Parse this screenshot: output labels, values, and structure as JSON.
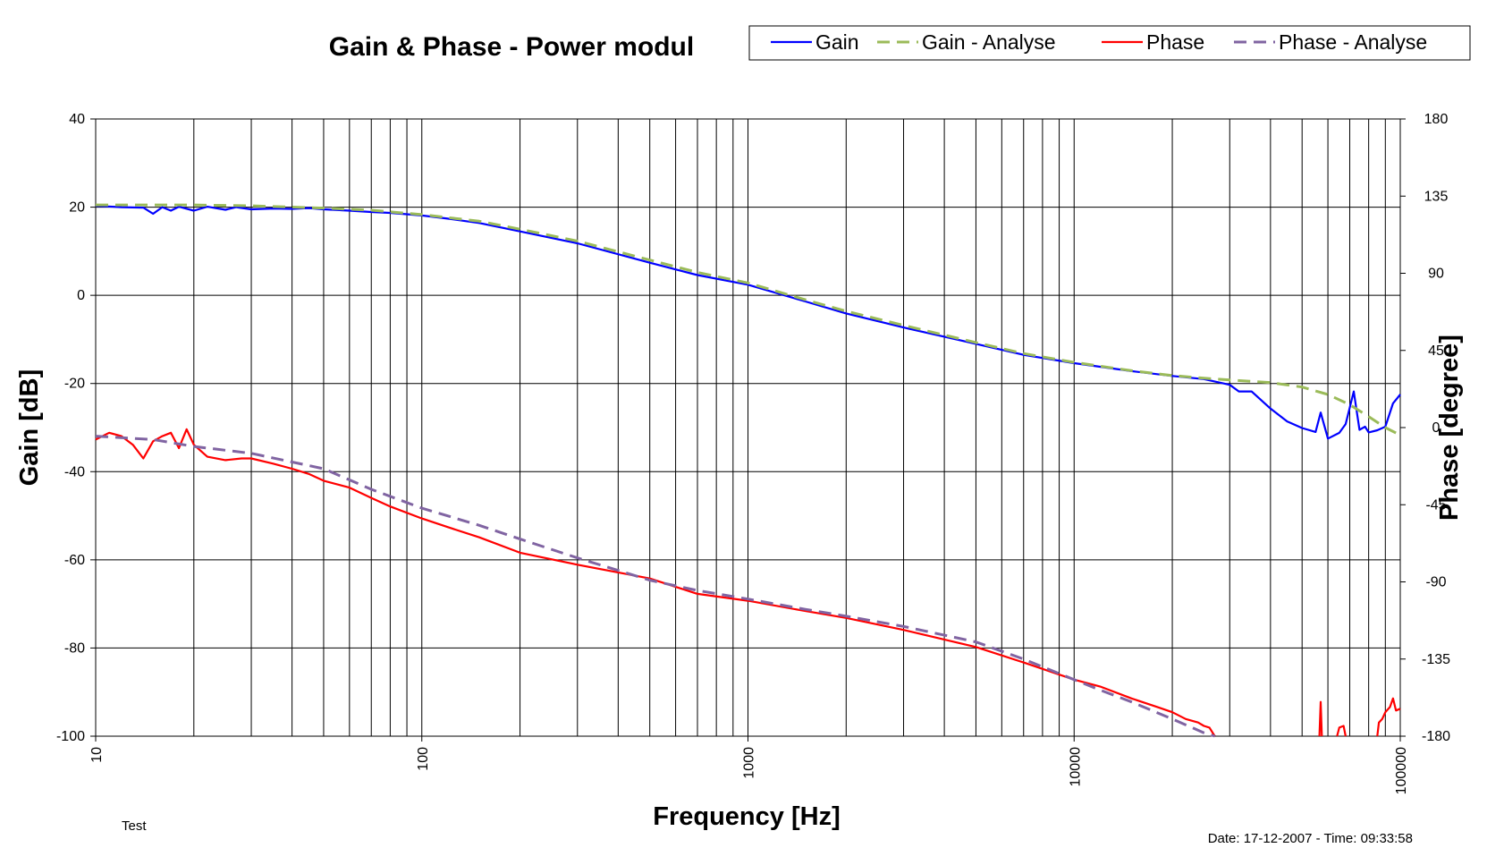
{
  "chart_data": {
    "type": "line",
    "title": "Gain & Phase - Power modul",
    "xlabel": "Frequency [Hz]",
    "ylabel": "Gain [dB]",
    "y2label": "Phase [degree]",
    "xscale": "log",
    "xlim": [
      10,
      100000
    ],
    "ylim": [
      -100,
      40
    ],
    "y2lim": [
      -180,
      180
    ],
    "grid": true,
    "legend_position": "top-right",
    "x_ticks": [
      "10",
      "100",
      "1000",
      "10000",
      "100000"
    ],
    "y_ticks": [
      "40",
      "20",
      "0",
      "-20",
      "-40",
      "-60",
      "-80",
      "-100"
    ],
    "y2_ticks": [
      "180",
      "135",
      "90",
      "45",
      "0",
      "-45",
      "-90",
      "-135",
      "-180"
    ],
    "series": [
      {
        "name": "Gain",
        "axis": "left",
        "color": "#0000ff",
        "style": "solid",
        "x": [
          10,
          12,
          14,
          15,
          16,
          17,
          18,
          20,
          22,
          25,
          27,
          30,
          35,
          40,
          45,
          50,
          60,
          70,
          80,
          100,
          120,
          150,
          200,
          300,
          500,
          700,
          1000,
          1500,
          2000,
          3000,
          5000,
          7000,
          10000,
          15000,
          20000,
          25000,
          30000,
          32000,
          35000,
          40000,
          45000,
          50000,
          55000,
          57000,
          60000,
          65000,
          68000,
          72000,
          75000,
          78000,
          80000,
          85000,
          90000,
          95000,
          100000
        ],
        "y": [
          20.3,
          20.0,
          19.9,
          18.5,
          20.0,
          19.2,
          20.1,
          19.2,
          20.1,
          19.4,
          20.0,
          19.5,
          19.7,
          19.6,
          19.8,
          19.5,
          19.2,
          18.9,
          18.7,
          18.1,
          17.4,
          16.4,
          14.5,
          11.8,
          7.4,
          4.6,
          2.4,
          -1.4,
          -4.1,
          -7.3,
          -11.0,
          -13.5,
          -15.4,
          -17.2,
          -18.3,
          -19.0,
          -20.3,
          -21.8,
          -21.8,
          -25.7,
          -28.6,
          -30.1,
          -31.0,
          -26.6,
          -32.5,
          -31.2,
          -29.2,
          -21.8,
          -30.5,
          -29.8,
          -31.1,
          -30.6,
          -29.8,
          -24.5,
          -22.5
        ]
      },
      {
        "name": "Gain - Analyse",
        "axis": "left",
        "color": "#9bbb59",
        "style": "dashed",
        "x": [
          10,
          20,
          30,
          50,
          70,
          100,
          150,
          200,
          300,
          500,
          700,
          1000,
          1500,
          2000,
          3000,
          5000,
          7000,
          10000,
          15000,
          20000,
          25000,
          30000,
          40000,
          50000,
          60000,
          70000,
          80000,
          90000,
          100000
        ],
        "y": [
          20.5,
          20.5,
          20.3,
          19.8,
          19.3,
          18.3,
          16.8,
          15.0,
          12.3,
          8.0,
          5.2,
          2.8,
          -1.0,
          -3.6,
          -6.8,
          -10.7,
          -13.2,
          -15.2,
          -17.1,
          -18.2,
          -18.8,
          -19.2,
          -19.8,
          -20.8,
          -22.5,
          -24.8,
          -27.5,
          -30.0,
          -31.7
        ]
      },
      {
        "name": "Phase",
        "axis": "right",
        "color": "#ff0000",
        "style": "solid",
        "x": [
          10,
          11,
          12,
          13,
          14,
          15,
          16,
          17,
          18,
          19,
          20,
          22,
          25,
          28,
          30,
          35,
          40,
          45,
          50,
          60,
          70,
          80,
          100,
          120,
          150,
          200,
          300,
          500,
          700,
          1000,
          1500,
          2000,
          3000,
          5000,
          7000,
          10000,
          12000,
          15000,
          18000,
          20000,
          22000,
          24000,
          25000,
          26000,
          27000
        ],
        "y": [
          -7,
          -3,
          -5,
          -10,
          -18,
          -8,
          -5,
          -3,
          -12,
          -1,
          -10,
          -17,
          -19,
          -18,
          -18,
          -21,
          -24,
          -27,
          -31,
          -35,
          -41,
          -46,
          -53,
          -58,
          -64,
          -73,
          -80,
          -88,
          -97,
          -101,
          -107,
          -111,
          -118,
          -128,
          -137,
          -147,
          -151,
          -158,
          -163,
          -166,
          -170,
          -172,
          -174,
          -175,
          -180
        ]
      },
      {
        "name": "Phase - Analyse",
        "axis": "right",
        "color": "#8064a2",
        "style": "dashed",
        "x": [
          10,
          15,
          20,
          30,
          50,
          70,
          100,
          150,
          200,
          300,
          500,
          700,
          1000,
          1500,
          2000,
          3000,
          5000,
          7000,
          10000,
          12000,
          15000,
          20000,
          25000,
          27000
        ],
        "y": [
          -5,
          -7,
          -11,
          -15,
          -24,
          -36,
          -47,
          -57,
          -65,
          -76,
          -89,
          -95,
          -100,
          -106,
          -110,
          -116,
          -125,
          -135,
          -147,
          -153,
          -160,
          -170,
          -178,
          -180
        ]
      },
      {
        "name": "",
        "axis": "right",
        "color": "#ff0000",
        "style": "solid",
        "x": [
          56500,
          57000,
          57500
        ],
        "y": [
          -180,
          -160,
          -180
        ]
      },
      {
        "name": "",
        "axis": "right",
        "color": "#ff0000",
        "style": "solid",
        "x": [
          64000,
          65000,
          67000,
          68000
        ],
        "y": [
          -180,
          -175,
          -174,
          -180
        ]
      },
      {
        "name": "",
        "axis": "right",
        "color": "#ff0000",
        "style": "solid",
        "x": [
          85000,
          86000,
          88000,
          90000,
          93000,
          95000,
          97000,
          100000
        ],
        "y": [
          -180,
          -172,
          -170,
          -166,
          -163,
          -158,
          -165,
          -164
        ]
      }
    ]
  },
  "footer": {
    "left_note": "Test",
    "date_time": "Date: 17-12-2007 - Time: 09:33:58"
  }
}
